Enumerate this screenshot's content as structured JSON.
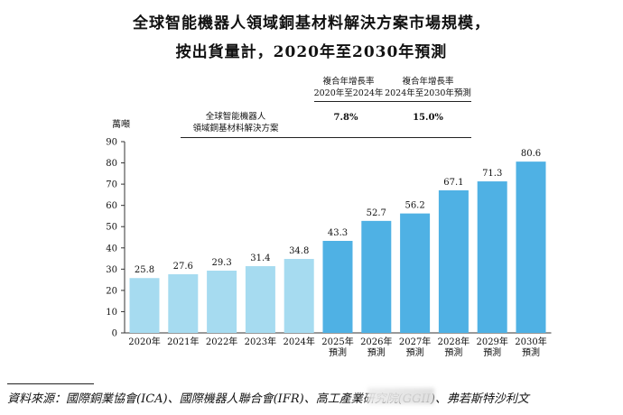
{
  "chart_data": {
    "type": "bar",
    "title": "全球智能機器人領域銅基材料解決方案市場規模，",
    "subtitle": "按出貨量計，2020年至2030年預測",
    "unit_label": "萬噸",
    "series_name": [
      "全球智能機器人",
      "領域銅基材料解決方案"
    ],
    "categories": [
      [
        "2020年"
      ],
      [
        "2021年"
      ],
      [
        "2022年"
      ],
      [
        "2023年"
      ],
      [
        "2024年"
      ],
      [
        "2025年",
        "預測"
      ],
      [
        "2026年",
        "預測"
      ],
      [
        "2027年",
        "預測"
      ],
      [
        "2028年",
        "預測"
      ],
      [
        "2029年",
        "預測"
      ],
      [
        "2030年",
        "預測"
      ]
    ],
    "values": [
      25.8,
      27.6,
      29.3,
      31.4,
      34.8,
      43.3,
      52.7,
      56.2,
      67.1,
      71.3,
      80.6
    ],
    "forecast_from_index": 5,
    "ylim": [
      0,
      90
    ],
    "yticks": [
      0,
      10,
      20,
      30,
      40,
      50,
      60,
      70,
      80,
      90
    ],
    "colors": {
      "historical": "#a6dbf0",
      "forecast": "#4fb1e4"
    },
    "cagr": [
      {
        "header": [
          "複合年增長率",
          "2020年至2024年"
        ],
        "value": "7.8%"
      },
      {
        "header": [
          "複合年增長率",
          "2024年至2030年預測"
        ],
        "value": "15.0%"
      }
    ]
  },
  "source": "資料來源：國際銅業協會(ICA)、國際機器人聯合會(IFR)、高工產業研究院(GGII)、弗若斯特沙利文"
}
